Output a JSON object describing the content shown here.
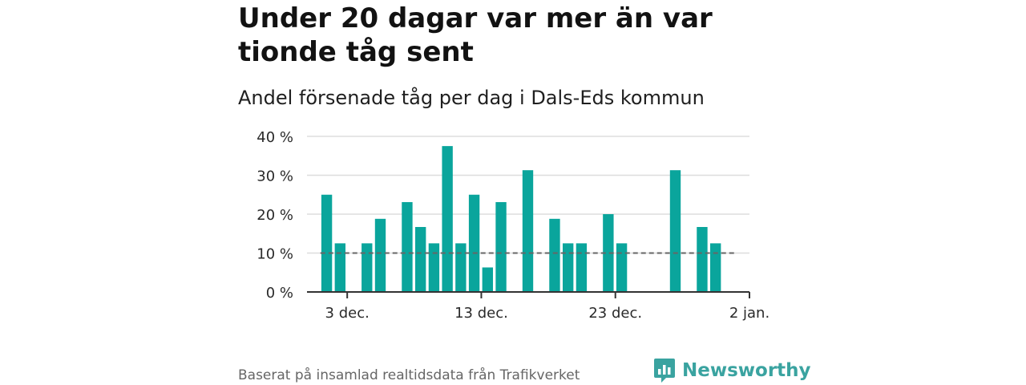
{
  "title": "Under 20 dagar var mer än var tionde tåg sent",
  "subtitle": "Andel försenade tåg per dag i Dals-Eds kommun",
  "footer": "Baserat på insamlad realtidsdata från Trafikverket",
  "brand": {
    "name": "Newsworthy",
    "color": "#3aa3a0"
  },
  "colors": {
    "bar": "#0aa59c",
    "grid": "#dddddd",
    "axis": "#333333",
    "reference": "#666666"
  },
  "chart_data": {
    "type": "bar",
    "x_start": "2023-11-30",
    "x_end": "2024-01-02",
    "xticks": [
      {
        "date": "2023-12-03",
        "label": "3 dec."
      },
      {
        "date": "2023-12-13",
        "label": "13 dec."
      },
      {
        "date": "2023-12-23",
        "label": "23 dec."
      },
      {
        "date": "2024-01-02",
        "label": "2 jan."
      }
    ],
    "yticks": [
      {
        "value": 0,
        "label": "0 %"
      },
      {
        "value": 10,
        "label": "10 %"
      },
      {
        "value": 20,
        "label": "20 %"
      },
      {
        "value": 30,
        "label": "30 %"
      },
      {
        "value": 40,
        "label": "40 %"
      }
    ],
    "ylim": [
      0,
      40
    ],
    "grid": true,
    "reference_line": {
      "value": 10,
      "style": "dashed",
      "x_from": "2023-12-01",
      "x_to": "2023-12-31"
    },
    "points": [
      {
        "date": "2023-12-01",
        "value": 25.0
      },
      {
        "date": "2023-12-02",
        "value": 12.5
      },
      {
        "date": "2023-12-04",
        "value": 12.5
      },
      {
        "date": "2023-12-05",
        "value": 18.8
      },
      {
        "date": "2023-12-07",
        "value": 23.1
      },
      {
        "date": "2023-12-08",
        "value": 16.7
      },
      {
        "date": "2023-12-09",
        "value": 12.5
      },
      {
        "date": "2023-12-10",
        "value": 37.5
      },
      {
        "date": "2023-12-11",
        "value": 12.5
      },
      {
        "date": "2023-12-12",
        "value": 25.0
      },
      {
        "date": "2023-12-13",
        "value": 6.3
      },
      {
        "date": "2023-12-14",
        "value": 23.1
      },
      {
        "date": "2023-12-16",
        "value": 31.3
      },
      {
        "date": "2023-12-18",
        "value": 18.8
      },
      {
        "date": "2023-12-19",
        "value": 12.5
      },
      {
        "date": "2023-12-20",
        "value": 12.5
      },
      {
        "date": "2023-12-22",
        "value": 20.0
      },
      {
        "date": "2023-12-23",
        "value": 12.5
      },
      {
        "date": "2023-12-27",
        "value": 31.3
      },
      {
        "date": "2023-12-29",
        "value": 16.7
      },
      {
        "date": "2023-12-30",
        "value": 12.5
      }
    ]
  }
}
